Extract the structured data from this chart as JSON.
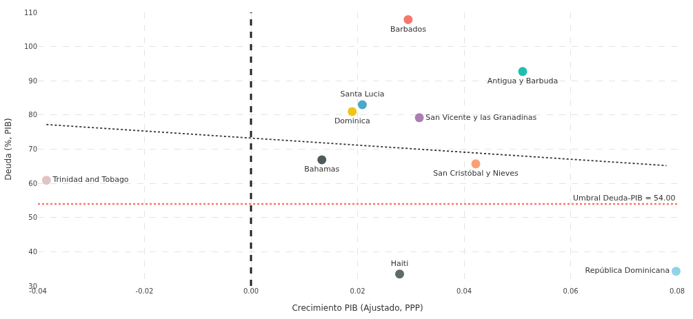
{
  "chart_data": {
    "type": "scatter",
    "xlabel": "Crecimiento PIB (Ajustado, PPP)",
    "ylabel": "Deuda (%, PIB)",
    "xlim": [
      -0.04,
      0.08
    ],
    "xticks": [
      {
        "value": -0.04,
        "label": "-0.04"
      },
      {
        "value": -0.02,
        "label": "-0.02"
      },
      {
        "value": 0,
        "label": "0.00"
      },
      {
        "value": 0.02,
        "label": "0.02"
      },
      {
        "value": 0.04,
        "label": "0.04"
      },
      {
        "value": 0.06,
        "label": "0.06"
      },
      {
        "value": 0.08,
        "label": "0.08"
      }
    ],
    "ylim": [
      30,
      110
    ],
    "yticks": [
      30,
      40,
      50,
      60,
      70,
      80,
      90,
      100,
      110
    ],
    "grid": true,
    "legend": false,
    "marker": "circle",
    "series": [
      {
        "name": "Barbados",
        "color": "#f8766d",
        "x": [
          0.0295
        ],
        "values": [
          107.9
        ]
      },
      {
        "name": "Antigua y Barbuda",
        "color": "#1fbfb0",
        "x": [
          0.051
        ],
        "values": [
          92.7
        ]
      },
      {
        "name": "Santa Lucia",
        "color": "#4aa8c8",
        "x": [
          0.0209
        ],
        "values": [
          83.0
        ]
      },
      {
        "name": "San Vicente y las Granadinas",
        "color": "#a97fb0",
        "x": [
          0.0316
        ],
        "values": [
          79.2
        ]
      },
      {
        "name": "Dominica",
        "color": "#f0c419",
        "x": [
          0.019
        ],
        "values": [
          81.0
        ]
      },
      {
        "name": "Bahamas",
        "color": "#4d5a5e",
        "x": [
          0.0133
        ],
        "values": [
          66.9
        ]
      },
      {
        "name": "San Cristóbal y Nieves",
        "color": "#f9a172",
        "x": [
          0.0422
        ],
        "values": [
          65.7
        ]
      },
      {
        "name": "Trinidad and Tobago",
        "color": "#e0c4c4",
        "x": [
          -0.0384
        ],
        "values": [
          60.9
        ]
      },
      {
        "name": "Haiti",
        "color": "#5f6b6b",
        "x": [
          0.0279
        ],
        "values": [
          33.5
        ]
      },
      {
        "name": "República Dominicana",
        "color": "#8fd3e8",
        "x": [
          0.0798
        ],
        "values": [
          34.3
        ]
      },
      {
        "type": "line",
        "color": "#333333",
        "line_style": "dotted",
        "marker": "none",
        "x": [
          -0.0384,
          0.078
        ],
        "values": [
          77.2,
          65.2
        ]
      }
    ],
    "ref_lines": [
      {
        "axis": "x",
        "value": 0,
        "color": "#222222",
        "line_style": "dashed"
      },
      {
        "axis": "y",
        "value": 54,
        "label": "Umbral Deuda-PIB = 54.00",
        "color": "#f8766d",
        "line_style": "dotted"
      }
    ]
  }
}
